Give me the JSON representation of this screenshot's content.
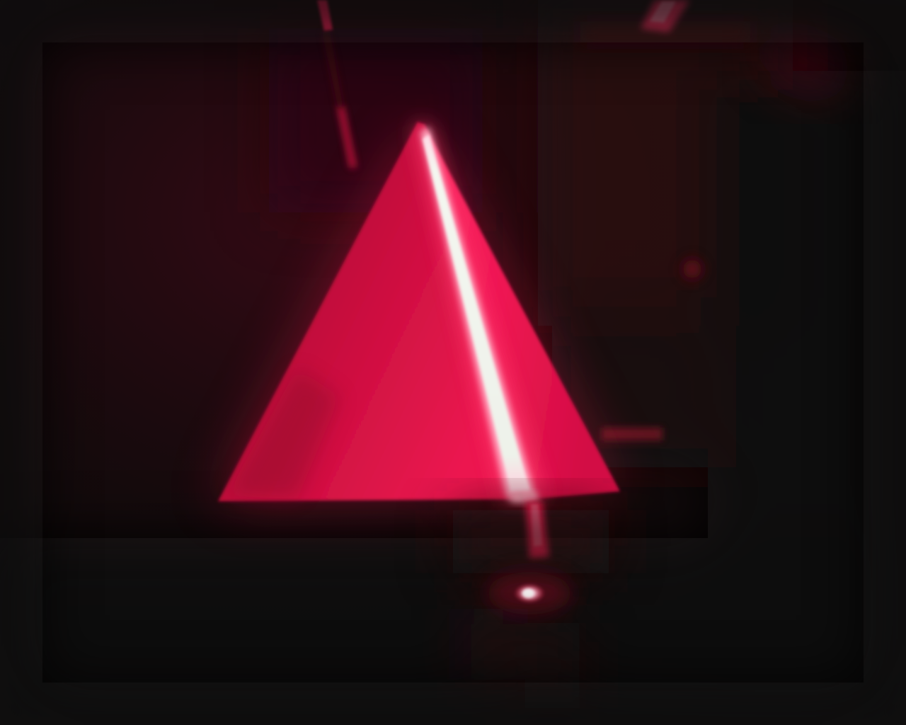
{
  "scene": {
    "colors": {
      "background": "#120b0c",
      "background_red_haze": "#3a0c16",
      "laser_red": "#ff1a4f",
      "prism_face": "#e8124a",
      "beam_core": "#f2f4ee",
      "floor_dark": "#0e0a0a"
    },
    "elements": [
      "triangular-prism",
      "laser-beam-core",
      "beam-exit-streak",
      "laser-spot-on-surface",
      "top-beam-streak",
      "top-right-beam-glow",
      "right-side-red-orb",
      "dark-background-apparatus"
    ]
  }
}
